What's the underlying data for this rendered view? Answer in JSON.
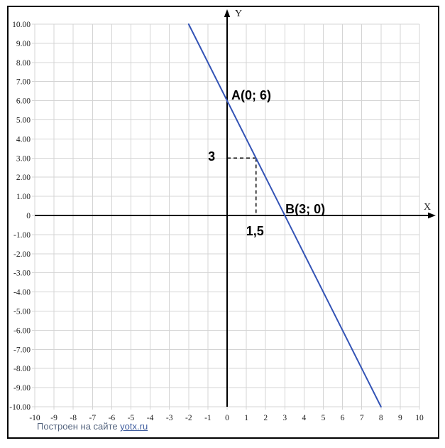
{
  "watermark": {
    "prefix": "Построен на сайте",
    "link_text": "yotx.ru"
  },
  "chart_data": {
    "type": "line",
    "title": "",
    "axis_labels": {
      "x": "X",
      "y": "Y"
    },
    "x_range": [
      -10,
      10
    ],
    "y_range": [
      -10,
      10
    ],
    "grid": true,
    "x_ticks": [
      {
        "v": -10,
        "label": "-10"
      },
      {
        "v": -9,
        "label": "-9"
      },
      {
        "v": -8,
        "label": "-8"
      },
      {
        "v": -7,
        "label": "-7"
      },
      {
        "v": -6,
        "label": "-6"
      },
      {
        "v": -5,
        "label": "-5"
      },
      {
        "v": -4,
        "label": "-4"
      },
      {
        "v": -3,
        "label": "-3"
      },
      {
        "v": -2,
        "label": "-2"
      },
      {
        "v": -1,
        "label": "-1"
      },
      {
        "v": 0,
        "label": "0"
      },
      {
        "v": 1,
        "label": "1"
      },
      {
        "v": 2,
        "label": "2"
      },
      {
        "v": 3,
        "label": "3"
      },
      {
        "v": 4,
        "label": "4"
      },
      {
        "v": 5,
        "label": "5"
      },
      {
        "v": 6,
        "label": "6"
      },
      {
        "v": 7,
        "label": "7"
      },
      {
        "v": 8,
        "label": "8"
      },
      {
        "v": 9,
        "label": "9"
      },
      {
        "v": 10,
        "label": "10"
      }
    ],
    "y_ticks": [
      {
        "v": 10,
        "label": "10.00"
      },
      {
        "v": 9,
        "label": "9.00"
      },
      {
        "v": 8,
        "label": "8.00"
      },
      {
        "v": 7,
        "label": "7.00"
      },
      {
        "v": 6,
        "label": "6.00"
      },
      {
        "v": 5,
        "label": "5.00"
      },
      {
        "v": 4,
        "label": "4.00"
      },
      {
        "v": 3,
        "label": "3.00"
      },
      {
        "v": 2,
        "label": "2.00"
      },
      {
        "v": 1,
        "label": "1.00"
      },
      {
        "v": 0,
        "label": "0"
      },
      {
        "v": -1,
        "label": "-1.00"
      },
      {
        "v": -2,
        "label": "-2.00"
      },
      {
        "v": -3,
        "label": "-3.00"
      },
      {
        "v": -4,
        "label": "-4.00"
      },
      {
        "v": -5,
        "label": "-5.00"
      },
      {
        "v": -6,
        "label": "-6.00"
      },
      {
        "v": -7,
        "label": "-7.00"
      },
      {
        "v": -8,
        "label": "-8.00"
      },
      {
        "v": -9,
        "label": "-9.00"
      },
      {
        "v": -10,
        "label": "-10.00"
      }
    ],
    "series": [
      {
        "color": "#3353b5",
        "points": [
          [
            -2,
            10
          ],
          [
            8,
            -10
          ]
        ]
      }
    ],
    "labeled_points": [
      {
        "label": "A",
        "x": 0,
        "y": 6
      },
      {
        "label": "B",
        "x": 3,
        "y": 0
      }
    ],
    "helper_lines": [
      {
        "from": [
          0,
          3
        ],
        "to": [
          1.5,
          3
        ],
        "style": "dashed"
      },
      {
        "from": [
          1.5,
          3
        ],
        "to": [
          1.5,
          0
        ],
        "style": "dashed"
      }
    ],
    "annotations": [
      {
        "text": "A(0; 6)",
        "x": 0.22,
        "y": 6.06,
        "anchor": "start"
      },
      {
        "text": "B(3; 0)",
        "x": 3.03,
        "y": 0.12,
        "anchor": "start"
      },
      {
        "text": "3",
        "x": -0.62,
        "y": 2.86,
        "anchor": "end"
      },
      {
        "text": "1,5",
        "x": 1.45,
        "y": -1.05,
        "anchor": "middle"
      }
    ],
    "colors": {
      "grid": "#d4d4d4",
      "axis": "#000000",
      "frame": "#000000",
      "line": "#3353b5",
      "annotation": "#000000"
    }
  }
}
